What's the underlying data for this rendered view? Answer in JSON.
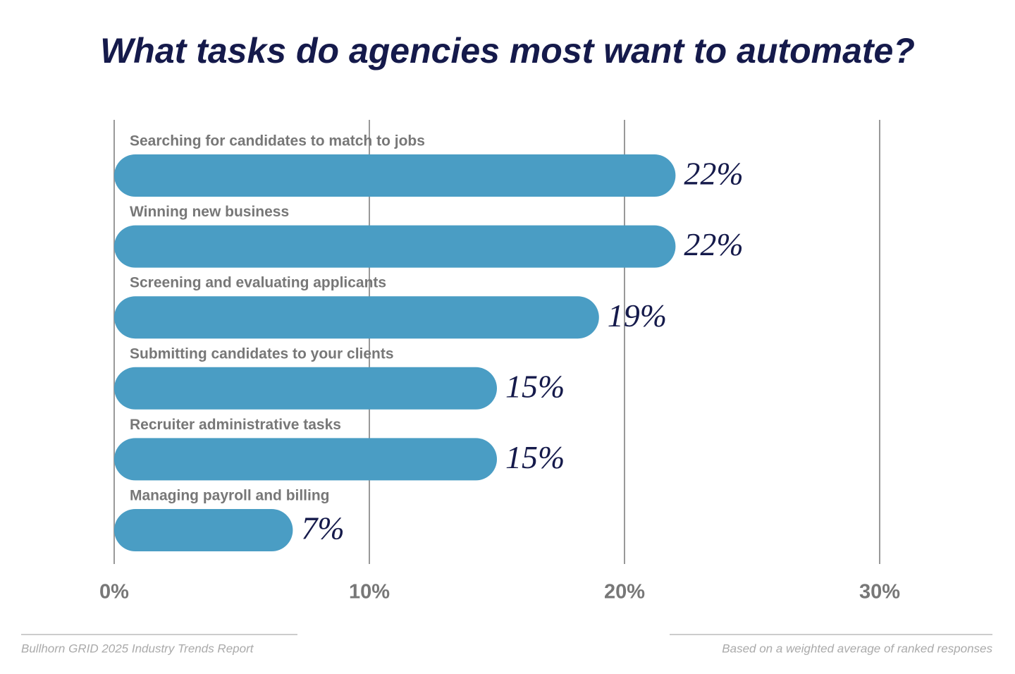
{
  "chart_data": {
    "type": "bar",
    "orientation": "horizontal",
    "title": "What tasks do agencies most want to automate?",
    "categories": [
      "Searching for candidates to match to jobs",
      "Winning new business",
      "Screening and evaluating applicants",
      "Submitting candidates to your clients",
      "Recruiter administrative tasks",
      "Managing payroll and billing"
    ],
    "values": [
      22,
      22,
      19,
      15,
      15,
      7
    ],
    "value_labels": [
      "22%",
      "22%",
      "19%",
      "15%",
      "15%",
      "7%"
    ],
    "color": "#4a9dc4",
    "xlim": [
      0,
      30
    ],
    "xticks": [
      {
        "value": 0,
        "label": "0%"
      },
      {
        "value": 10,
        "label": "10%"
      },
      {
        "value": 20,
        "label": "20%"
      },
      {
        "value": 30,
        "label": "30%"
      }
    ],
    "grid": true,
    "source": "Bullhorn GRID 2025 Industry Trends Report",
    "note": "Based on a weighted average of ranked responses"
  }
}
